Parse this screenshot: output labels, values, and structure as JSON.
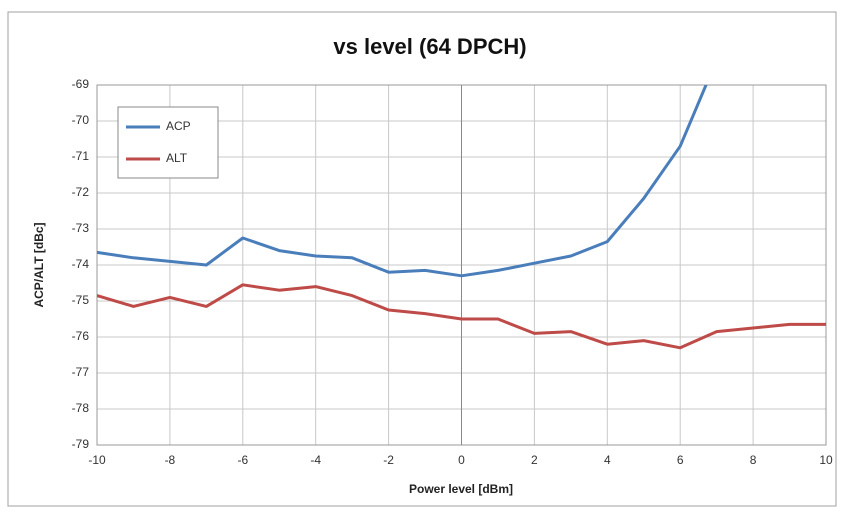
{
  "chart_data": {
    "type": "line",
    "title": "vs level (64 DPCH)",
    "xlabel": "Power level [dBm]",
    "ylabel": "ACP/ALT [dBc]",
    "x": [
      -10,
      -9,
      -8,
      -7,
      -6,
      -5,
      -4,
      -3,
      -2,
      -1,
      0,
      1,
      2,
      3,
      4,
      5,
      6,
      7,
      8,
      9,
      10
    ],
    "series": [
      {
        "name": "ACP",
        "color": "#4a7ebb",
        "values": [
          -73.65,
          -73.8,
          -73.9,
          -74.0,
          -73.25,
          -73.6,
          -73.75,
          -73.8,
          -74.2,
          -74.15,
          -74.3,
          -74.15,
          -73.95,
          -73.75,
          -73.35,
          -72.15,
          -70.7,
          -68.3,
          null,
          null,
          null
        ]
      },
      {
        "name": "ALT",
        "color": "#be4b48",
        "values": [
          -74.85,
          -75.15,
          -74.9,
          -75.15,
          -74.55,
          -74.7,
          -74.6,
          -74.85,
          -75.25,
          -75.35,
          -75.5,
          -75.5,
          -75.9,
          -75.85,
          -76.2,
          -76.1,
          -76.3,
          -75.85,
          -75.75,
          -75.65,
          -75.65
        ]
      }
    ],
    "xlim": [
      -10,
      10
    ],
    "xticks": [
      -10,
      -8,
      -6,
      -4,
      -2,
      0,
      2,
      4,
      6,
      8,
      10
    ],
    "ylim": [
      -79,
      -69
    ],
    "yticks": [
      -79,
      -78,
      -77,
      -76,
      -75,
      -74,
      -73,
      -72,
      -71,
      -70,
      -69
    ],
    "grid": true,
    "legend": "upper left"
  }
}
